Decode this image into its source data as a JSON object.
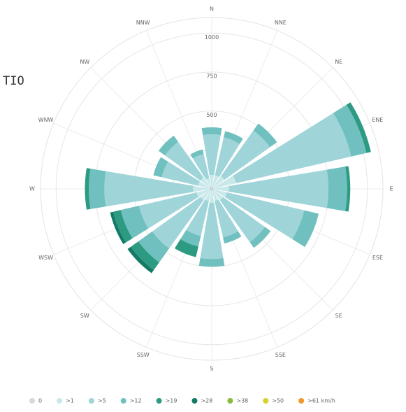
{
  "note_text": "TIO",
  "chart_data": {
    "type": "windrose",
    "directions": [
      "N",
      "NNE",
      "NE",
      "ENE",
      "E",
      "ESE",
      "SE",
      "SSE",
      "S",
      "SSW",
      "SW",
      "WSW",
      "W",
      "WNW",
      "NW",
      "NNW"
    ],
    "rlim": [
      0,
      1100
    ],
    "rticks": [
      0,
      250,
      500,
      750,
      1000
    ],
    "grid": true,
    "series": [
      {
        "name": "0",
        "color": "#d9d9d9",
        "values": [
          10,
          10,
          10,
          10,
          10,
          10,
          10,
          10,
          10,
          10,
          10,
          10,
          10,
          10,
          10,
          10
        ]
      },
      {
        "name": ">1",
        "color": "#c9e8ea",
        "values": [
          80,
          80,
          90,
          150,
          100,
          90,
          80,
          70,
          80,
          70,
          80,
          90,
          110,
          80,
          80,
          60
        ]
      },
      {
        "name": ">5",
        "color": "#9fd4d9",
        "values": [
          260,
          250,
          360,
          760,
          640,
          510,
          330,
          240,
          360,
          230,
          380,
          380,
          570,
          240,
          280,
          160
        ]
      },
      {
        "name": ">12",
        "color": "#6fc0bf",
        "values": [
          45,
          40,
          55,
          100,
          120,
          95,
          45,
          40,
          50,
          70,
          110,
          120,
          100,
          55,
          50,
          30
        ]
      },
      {
        "name": ">19",
        "color": "#2d9a82",
        "values": [
          0,
          0,
          0,
          30,
          20,
          0,
          0,
          0,
          0,
          70,
          60,
          50,
          25,
          0,
          0,
          0
        ]
      },
      {
        "name": ">28",
        "color": "#137a66",
        "values": [
          0,
          0,
          0,
          0,
          0,
          0,
          0,
          0,
          0,
          0,
          25,
          20,
          0,
          0,
          0,
          0
        ]
      },
      {
        "name": ">38",
        "color": "#86bb3c",
        "values": [
          0,
          0,
          0,
          0,
          0,
          0,
          0,
          0,
          0,
          0,
          0,
          0,
          0,
          0,
          0,
          0
        ]
      },
      {
        "name": ">50",
        "color": "#d6d32c",
        "values": [
          0,
          0,
          0,
          0,
          0,
          0,
          0,
          0,
          0,
          0,
          0,
          0,
          0,
          0,
          0,
          0
        ]
      },
      {
        "name": ">61 km/h",
        "color": "#ee9a2c",
        "values": [
          0,
          0,
          0,
          0,
          0,
          0,
          0,
          0,
          0,
          0,
          0,
          0,
          0,
          0,
          0,
          0
        ]
      }
    ]
  }
}
